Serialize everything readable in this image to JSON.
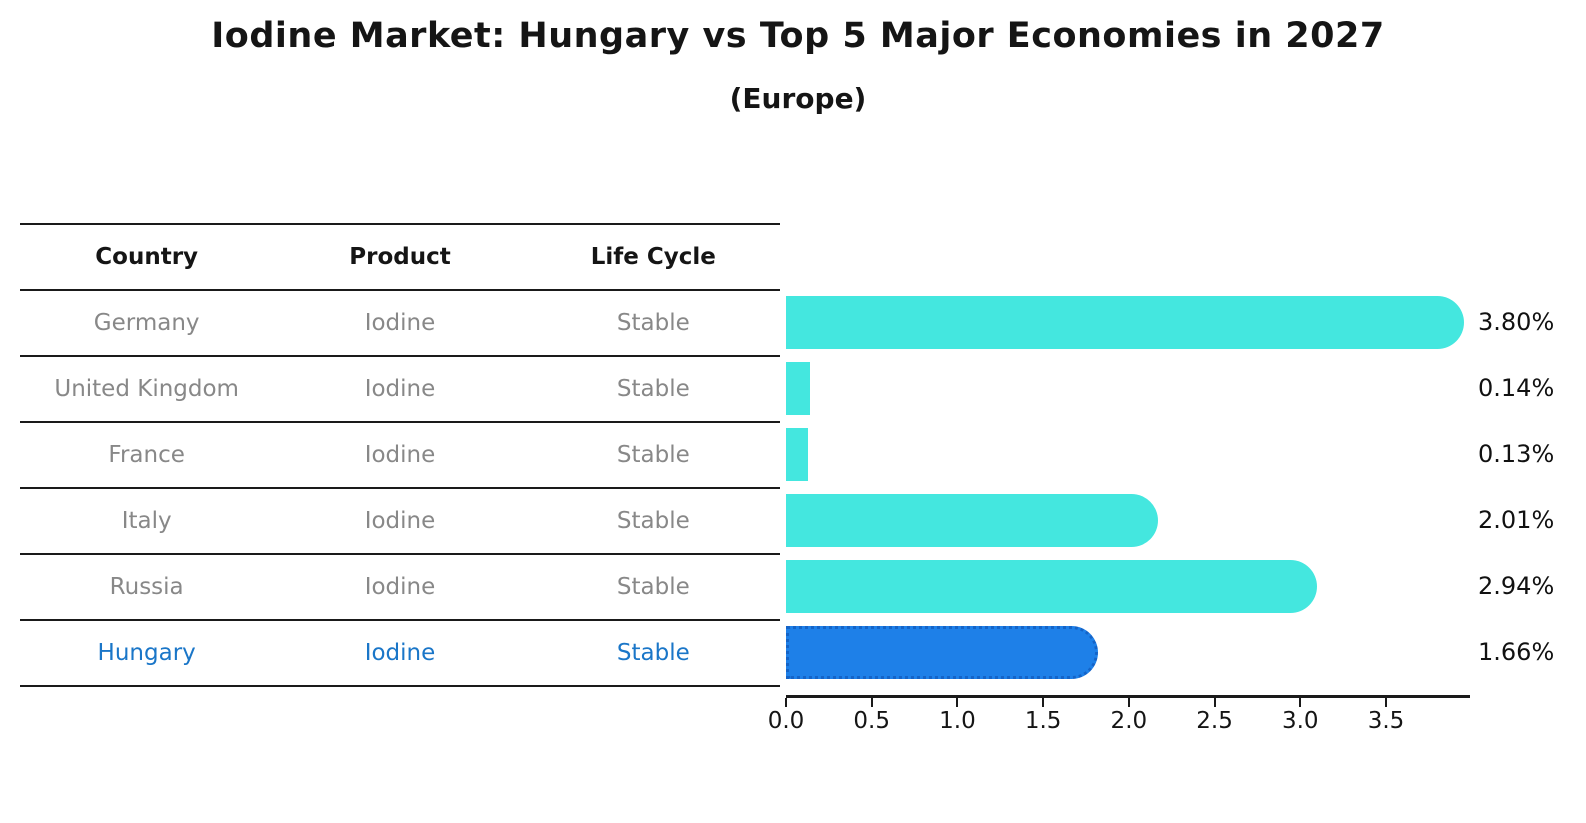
{
  "title": "Iodine Market: Hungary vs Top 5 Major Economies in 2027",
  "subtitle": "(Europe)",
  "table": {
    "headers": [
      "Country",
      "Product",
      "Life Cycle"
    ],
    "rows": [
      {
        "country": "Germany",
        "product": "Iodine",
        "life_cycle": "Stable",
        "highlight": false
      },
      {
        "country": "United Kingdom",
        "product": "Iodine",
        "life_cycle": "Stable",
        "highlight": false
      },
      {
        "country": "France",
        "product": "Iodine",
        "life_cycle": "Stable",
        "highlight": false
      },
      {
        "country": "Italy",
        "product": "Iodine",
        "life_cycle": "Stable",
        "highlight": false
      },
      {
        "country": "Russia",
        "product": "Iodine",
        "life_cycle": "Stable",
        "highlight": false
      },
      {
        "country": "Hungary",
        "product": "Iodine",
        "life_cycle": "Stable",
        "highlight": true
      }
    ]
  },
  "chart_data": {
    "type": "bar",
    "orientation": "horizontal",
    "title": "Iodine Market: Hungary vs Top 5 Major Economies in 2027",
    "subtitle": "(Europe)",
    "categories": [
      "Germany",
      "United Kingdom",
      "France",
      "Italy",
      "Russia",
      "Hungary"
    ],
    "values": [
      3.8,
      0.14,
      0.13,
      2.01,
      2.94,
      1.66
    ],
    "value_labels": [
      "3.80%",
      "0.14%",
      "0.13%",
      "2.01%",
      "2.94%",
      "1.66%"
    ],
    "unit": "%",
    "xlim": [
      0,
      3.99
    ],
    "x_tick_values": [
      0.0,
      0.5,
      1.0,
      1.5,
      2.0,
      2.5,
      3.0,
      3.5
    ],
    "x_tick_labels": [
      "0.0",
      "0.5",
      "1.0",
      "1.5",
      "2.0",
      "2.5",
      "3.0",
      "3.5"
    ],
    "highlight_index": 5,
    "grid": false,
    "legend": false,
    "colors": {
      "bar": "#44E7DF",
      "highlight_bar": "#1E80E8",
      "highlight_border": "#1464C8",
      "highlight_text": "#1A76C8",
      "row_text": "#888888",
      "header_text": "#151515",
      "axis": "#1a1a1a"
    }
  }
}
